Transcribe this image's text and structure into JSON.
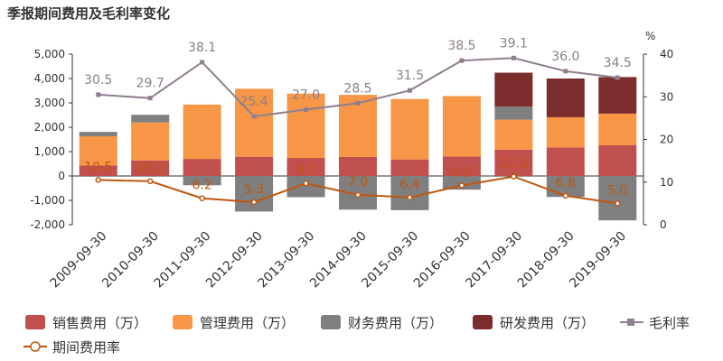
{
  "chart_data": {
    "type": "bar",
    "title": "季报期间费用及毛利率变化",
    "categories": [
      "2009-09-30",
      "2010-09-30",
      "2011-09-30",
      "2012-09-30",
      "2013-09-30",
      "2014-09-30",
      "2015-09-30",
      "2016-09-30",
      "2017-09-30",
      "2018-09-30",
      "2019-09-30"
    ],
    "y_left": {
      "ticks": [
        -2000,
        -1000,
        0,
        1000,
        2000,
        3000,
        4000,
        5000
      ],
      "tick_labels": [
        "-2,000",
        "-1,000",
        "0",
        "1,000",
        "2,000",
        "3,000",
        "4,000",
        "5,000"
      ],
      "range": [
        -2000,
        5000
      ]
    },
    "y_right": {
      "label": "%",
      "ticks": [
        0,
        10,
        20,
        30,
        40
      ],
      "range": [
        0,
        40
      ]
    },
    "series": [
      {
        "name": "销售费用（万）",
        "kind": "bar",
        "color": "#c0504d",
        "values": [
          430,
          640,
          700,
          790,
          740,
          780,
          680,
          800,
          1080,
          1170,
          1260
        ]
      },
      {
        "name": "管理费用（万）",
        "kind": "bar",
        "color": "#f79646",
        "values": [
          1200,
          1560,
          2230,
          2790,
          2640,
          2550,
          2480,
          2480,
          1230,
          1240,
          1300
        ]
      },
      {
        "name": "财务费用（万）",
        "kind": "bar",
        "color": "#7f7f7f",
        "values": [
          180,
          310,
          -380,
          -1460,
          -870,
          -1380,
          -1400,
          -560,
          540,
          -860,
          -1820
        ]
      },
      {
        "name": "研发费用（万）",
        "kind": "bar",
        "color": "#7b2c2c",
        "values": [
          0,
          0,
          0,
          0,
          0,
          0,
          0,
          0,
          1390,
          1590,
          1500
        ]
      },
      {
        "name": "毛利率",
        "kind": "line",
        "axis": "right",
        "color": "#8f7f8f",
        "values": [
          30.5,
          29.7,
          38.1,
          25.4,
          27.0,
          28.5,
          31.5,
          38.5,
          39.1,
          36.0,
          34.5
        ],
        "labels": [
          "30.5",
          "29.7",
          "38.1",
          "25.4",
          "27.0",
          "28.5",
          "31.5",
          "38.5",
          "39.1",
          "36.0",
          "34.5"
        ]
      },
      {
        "name": "期间费用率",
        "kind": "line",
        "axis": "right",
        "color": "#c0560d",
        "values": [
          10.5,
          10.2,
          6.2,
          5.3,
          9.7,
          7.0,
          6.4,
          9.2,
          11.3,
          6.8,
          5.0
        ],
        "labels": [
          "10.5",
          "10.2",
          "6.2",
          "5.3",
          "9.7",
          "7.0",
          "6.4",
          "9.2",
          "11.3",
          "6.8",
          "5.0"
        ]
      }
    ],
    "grid": false,
    "legend_position": "bottom"
  }
}
